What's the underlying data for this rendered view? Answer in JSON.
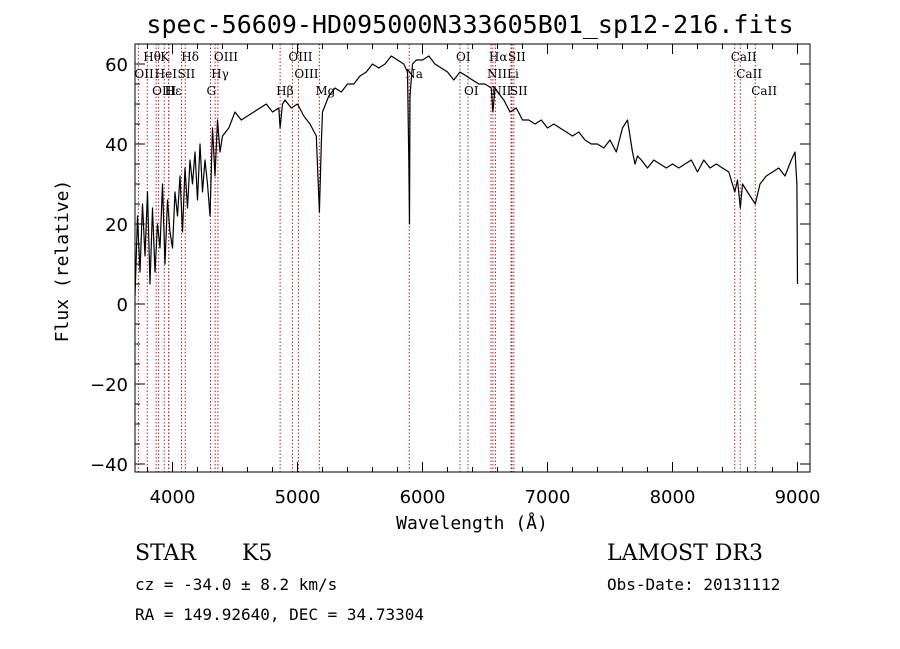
{
  "chart_data": {
    "type": "line",
    "title": "spec-56609-HD095000N333605B01_sp12-216.fits",
    "xlabel": "Wavelength (Å)",
    "ylabel": "Flux (relative)",
    "xlim": [
      3700,
      9100
    ],
    "ylim": [
      -42,
      65
    ],
    "x_ticks": [
      4000,
      5000,
      6000,
      7000,
      8000,
      9000
    ],
    "y_ticks": [
      -40,
      -20,
      0,
      20,
      40,
      60
    ],
    "series": [
      {
        "name": "flux",
        "x": [
          3700,
          3720,
          3740,
          3760,
          3780,
          3800,
          3820,
          3840,
          3860,
          3880,
          3900,
          3920,
          3940,
          3960,
          3980,
          4000,
          4020,
          4040,
          4060,
          4080,
          4100,
          4120,
          4140,
          4160,
          4180,
          4200,
          4220,
          4240,
          4260,
          4280,
          4300,
          4320,
          4340,
          4360,
          4380,
          4400,
          4450,
          4500,
          4550,
          4600,
          4650,
          4700,
          4750,
          4800,
          4850,
          4861,
          4880,
          4900,
          4950,
          5000,
          5050,
          5100,
          5150,
          5175,
          5190,
          5200,
          5250,
          5300,
          5350,
          5400,
          5450,
          5500,
          5550,
          5600,
          5650,
          5700,
          5750,
          5800,
          5850,
          5880,
          5890,
          5896,
          5900,
          5920,
          5950,
          6000,
          6050,
          6100,
          6150,
          6200,
          6250,
          6300,
          6350,
          6400,
          6450,
          6500,
          6550,
          6563,
          6580,
          6600,
          6650,
          6700,
          6750,
          6800,
          6850,
          6900,
          6950,
          7000,
          7050,
          7100,
          7150,
          7200,
          7250,
          7300,
          7350,
          7400,
          7450,
          7500,
          7550,
          7600,
          7640,
          7660,
          7680,
          7700,
          7720,
          7750,
          7800,
          7850,
          7900,
          7950,
          8000,
          8050,
          8100,
          8150,
          8200,
          8250,
          8300,
          8350,
          8400,
          8450,
          8498,
          8520,
          8542,
          8560,
          8600,
          8662,
          8700,
          8750,
          8800,
          8850,
          8900,
          8950,
          8980,
          8995,
          9000
        ],
        "y": [
          2,
          22,
          8,
          25,
          12,
          28,
          5,
          24,
          8,
          20,
          14,
          30,
          10,
          26,
          18,
          14,
          28,
          22,
          32,
          18,
          34,
          24,
          36,
          30,
          38,
          26,
          40,
          28,
          36,
          30,
          22,
          44,
          32,
          46,
          38,
          42,
          44,
          48,
          46,
          47,
          48,
          49,
          50,
          48,
          49,
          44,
          50,
          51,
          49,
          50,
          47,
          45,
          42,
          23,
          40,
          48,
          52,
          54,
          53,
          55,
          55,
          57,
          58,
          60,
          59,
          60,
          62,
          61,
          60,
          58,
          36,
          20,
          52,
          60,
          61,
          61,
          62,
          60,
          59,
          58,
          56,
          58,
          57,
          56,
          55,
          55,
          54,
          48,
          54,
          53,
          51,
          48,
          49,
          46,
          46,
          45,
          46,
          44,
          45,
          44,
          43,
          42,
          43,
          41,
          40,
          40,
          39,
          41,
          38,
          44,
          46,
          42,
          38,
          35,
          37,
          36,
          34,
          36,
          35,
          34,
          35,
          34,
          35,
          36,
          33,
          36,
          34,
          35,
          34,
          33,
          28,
          31,
          24,
          30,
          28,
          25,
          30,
          32,
          33,
          34,
          32,
          36,
          38,
          30,
          5
        ]
      }
    ],
    "lines": [
      {
        "name": "OII",
        "x": 3727
      },
      {
        "name": "Hθ",
        "x": 3798
      },
      {
        "name": "OIII",
        "x": 3869
      },
      {
        "name": "HeI",
        "x": 3889
      },
      {
        "name": "K",
        "x": 3934
      },
      {
        "name": "H",
        "x": 3969
      },
      {
        "name": "Hε",
        "x": 3970
      },
      {
        "name": "SII",
        "x": 4072
      },
      {
        "name": "Hδ",
        "x": 4102
      },
      {
        "name": "G",
        "x": 4304
      },
      {
        "name": "Hγ",
        "x": 4341
      },
      {
        "name": "OIII",
        "x": 4363
      },
      {
        "name": "Hβ",
        "x": 4861
      },
      {
        "name": "OIII",
        "x": 4959
      },
      {
        "name": "OIII",
        "x": 5007
      },
      {
        "name": "Mg",
        "x": 5175
      },
      {
        "name": "Na",
        "x": 5894
      },
      {
        "name": "OI",
        "x": 6300
      },
      {
        "name": "OI",
        "x": 6364
      },
      {
        "name": "NII",
        "x": 6548
      },
      {
        "name": "Hα",
        "x": 6563
      },
      {
        "name": "NII",
        "x": 6583
      },
      {
        "name": "Li",
        "x": 6708
      },
      {
        "name": "SII",
        "x": 6716
      },
      {
        "name": "SII",
        "x": 6731
      },
      {
        "name": "CaII",
        "x": 8498
      },
      {
        "name": "CaII",
        "x": 8542
      },
      {
        "name": "CaII",
        "x": 8662
      }
    ],
    "line_labels": [
      {
        "text": "Hθ",
        "x": 3798,
        "row": 0
      },
      {
        "text": "K",
        "x": 3934,
        "row": 0
      },
      {
        "text": "Hδ",
        "x": 4102,
        "row": 0
      },
      {
        "text": "OIII",
        "x": 4363,
        "row": 0
      },
      {
        "text": "OIII",
        "x": 4959,
        "row": 0
      },
      {
        "text": "OI",
        "x": 6300,
        "row": 0
      },
      {
        "text": "Hα",
        "x": 6563,
        "row": 0
      },
      {
        "text": "SII",
        "x": 6716,
        "row": 0
      },
      {
        "text": "CaII",
        "x": 8498,
        "row": 0
      },
      {
        "text": "OII",
        "x": 3727,
        "row": 1
      },
      {
        "text": "HeI",
        "x": 3889,
        "row": 1
      },
      {
        "text": "SII",
        "x": 4072,
        "row": 1
      },
      {
        "text": "Hγ",
        "x": 4341,
        "row": 1
      },
      {
        "text": "OIII",
        "x": 5007,
        "row": 1
      },
      {
        "text": "Na",
        "x": 5894,
        "row": 1
      },
      {
        "text": "NII",
        "x": 6548,
        "row": 1
      },
      {
        "text": "Li",
        "x": 6708,
        "row": 1
      },
      {
        "text": "CaII",
        "x": 8542,
        "row": 1
      },
      {
        "text": "OIII",
        "x": 3869,
        "row": 2
      },
      {
        "text": "Hε",
        "x": 3970,
        "row": 2
      },
      {
        "text": "H",
        "x": 3969,
        "row": 2
      },
      {
        "text": "G",
        "x": 4304,
        "row": 2
      },
      {
        "text": "Hβ",
        "x": 4861,
        "row": 2
      },
      {
        "text": "Mg",
        "x": 5175,
        "row": 2
      },
      {
        "text": "OI",
        "x": 6364,
        "row": 2
      },
      {
        "text": "NII",
        "x": 6583,
        "row": 2
      },
      {
        "text": "SII",
        "x": 6731,
        "row": 2
      },
      {
        "text": "CaII",
        "x": 8662,
        "row": 2
      }
    ]
  },
  "footer": {
    "object_class": "STAR",
    "subclass": "K5",
    "survey": "LAMOST DR3",
    "redshift": "cz = -34.0 ± 8.2 km/s",
    "obs_date": "Obs-Date: 20131112",
    "coords": "RA = 149.92640, DEC =  34.73304"
  },
  "colors": {
    "line_marker": "#b22222",
    "spectrum": "#000000"
  }
}
